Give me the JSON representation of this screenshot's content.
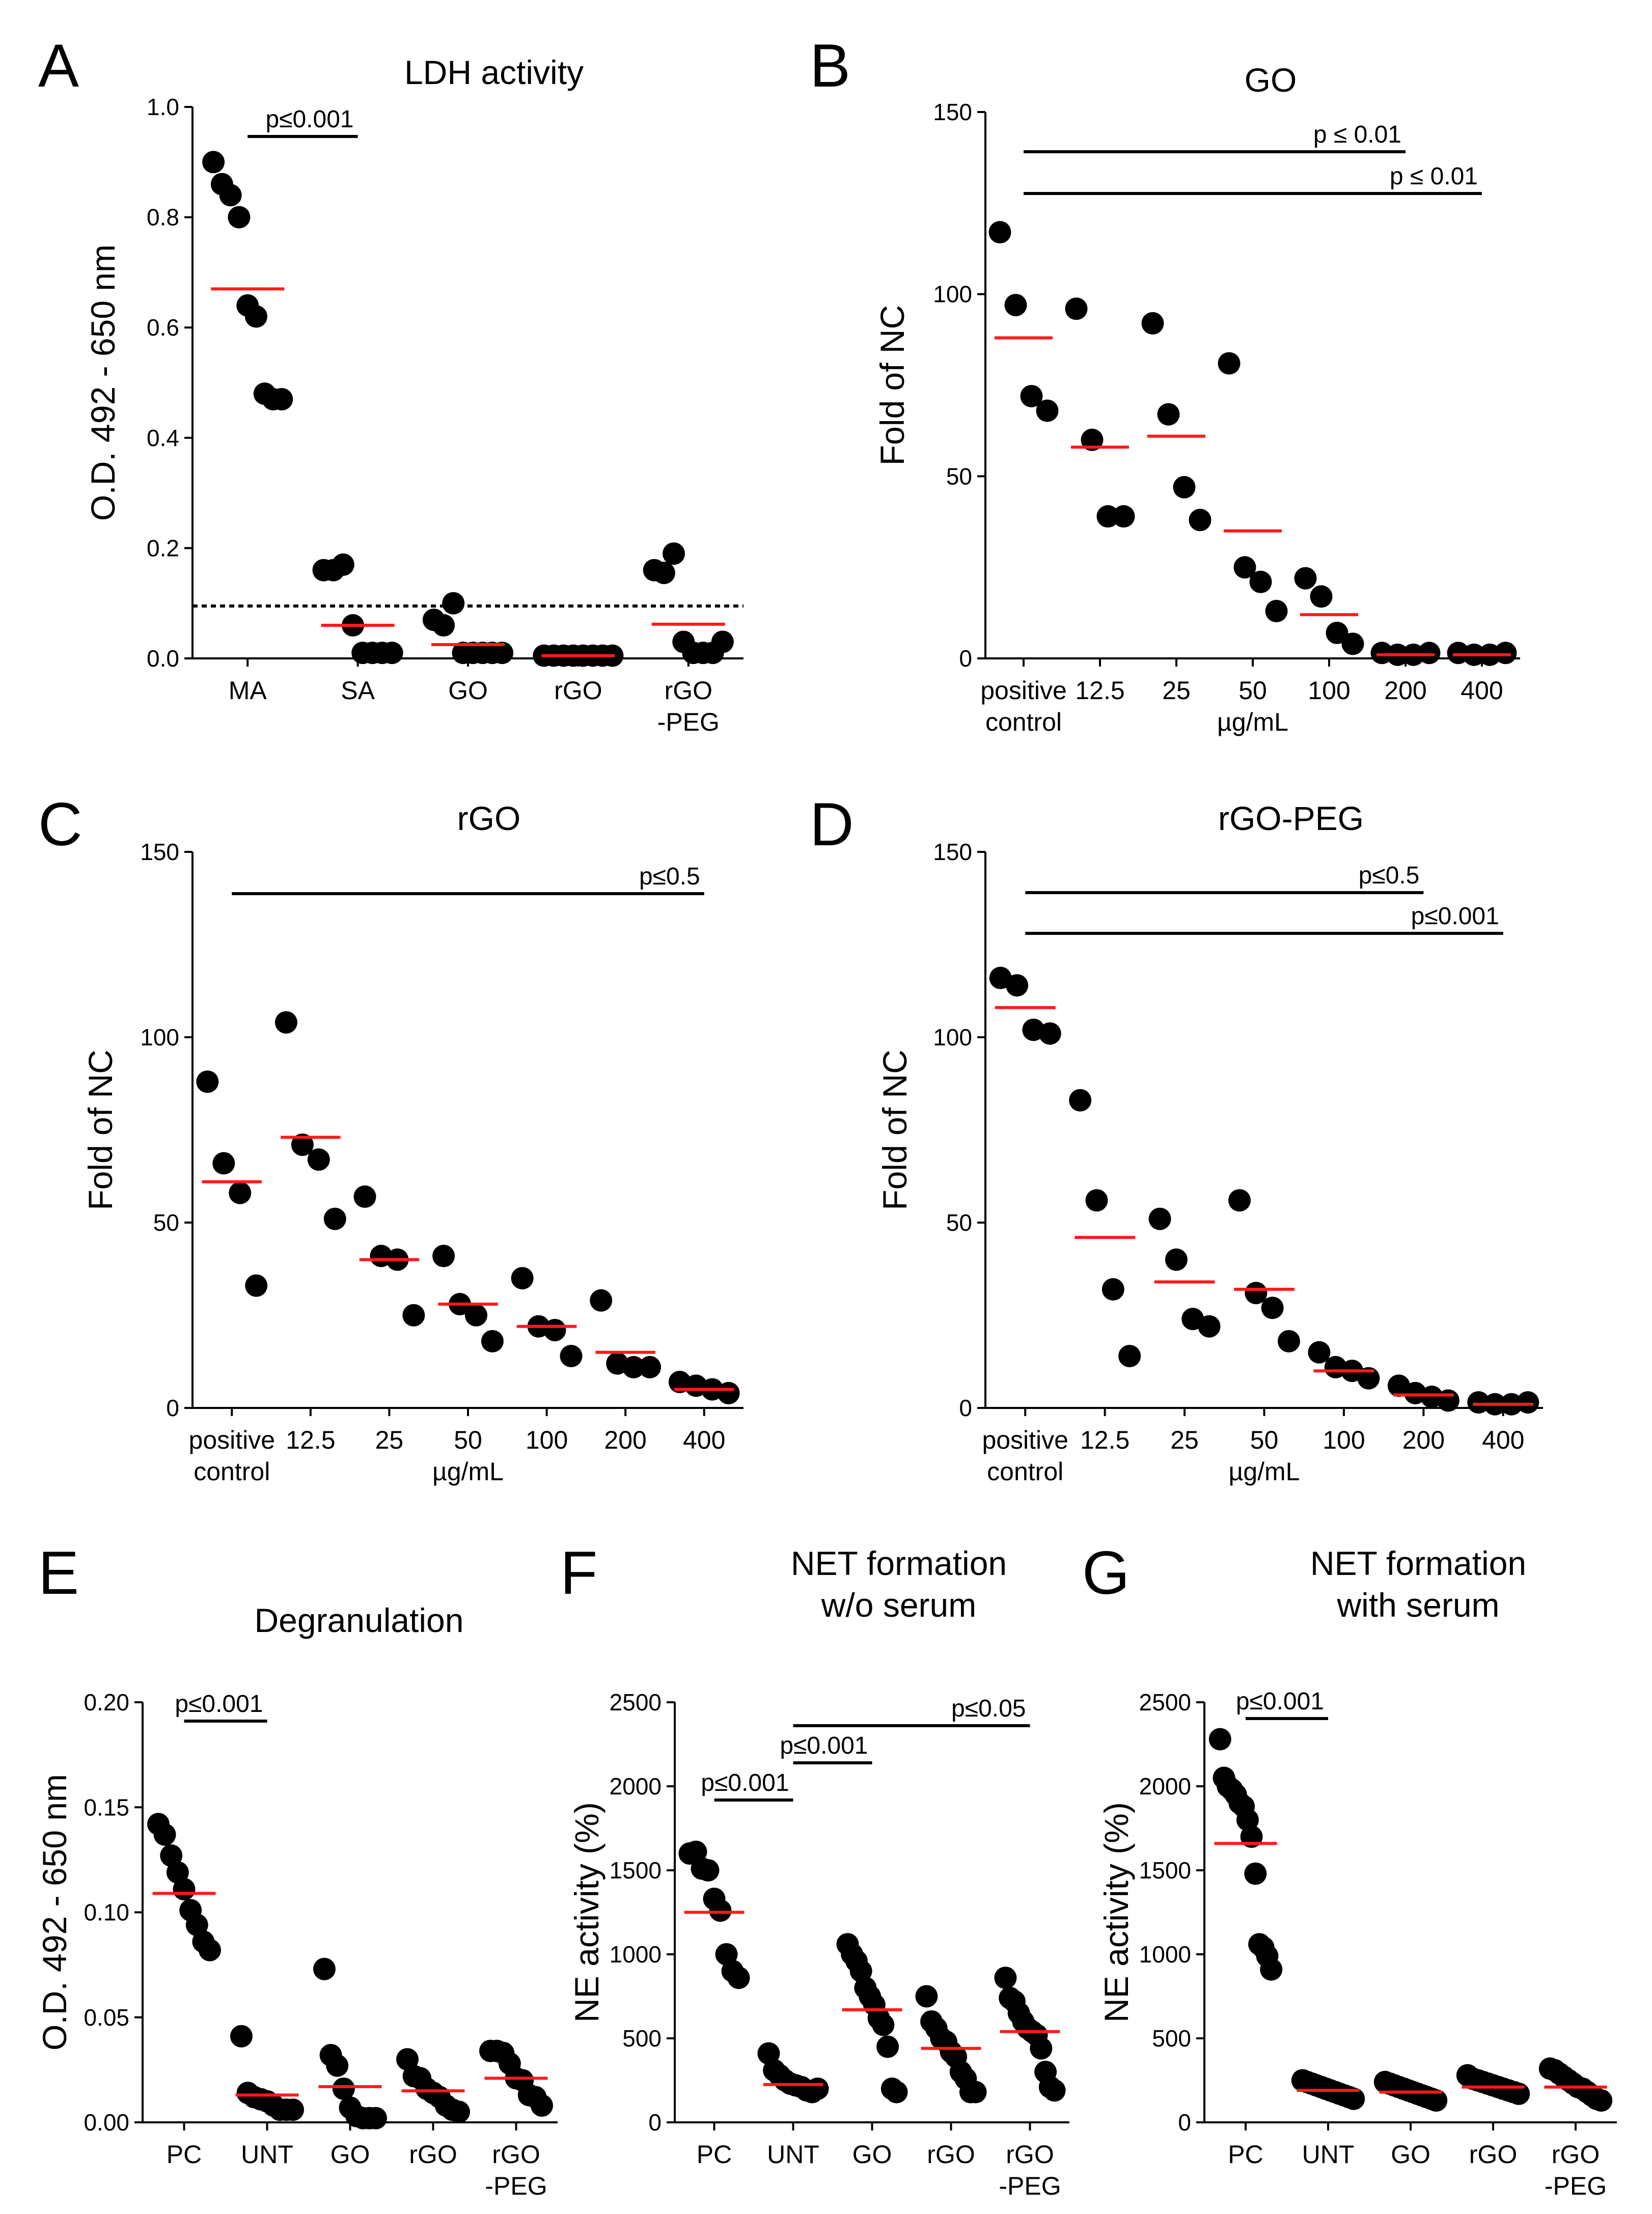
{
  "chart_data": [
    {
      "id": "A",
      "type": "scatter",
      "letter": "A",
      "title": "LDH activity",
      "ylabel": "O.D. 492 - 650 nm",
      "xlabel": "",
      "ylim": [
        0,
        1.0
      ],
      "yticks": [
        0,
        0.2,
        0.4,
        0.6,
        0.8,
        1.0
      ],
      "ytick_labels": [
        "0.0",
        "0.2",
        "0.4",
        "0.6",
        "0.8",
        "1.0"
      ],
      "categories": [
        "MA",
        "SA",
        "GO",
        "rGO",
        "rGO\n-PEG"
      ],
      "points": [
        [
          0.9,
          0.86,
          0.84,
          0.8,
          0.64,
          0.62,
          0.48,
          0.47,
          0.47
        ],
        [
          0.16,
          0.16,
          0.17,
          0.06,
          0.01,
          0.01,
          0.01,
          0.01
        ],
        [
          0.07,
          0.06,
          0.1,
          0.01,
          0.01,
          0.01,
          0.01,
          0.01
        ],
        [
          0.005,
          0.005,
          0.005,
          0.005,
          0.005,
          0.005,
          0.005,
          0.005
        ],
        [
          0.16,
          0.155,
          0.19,
          0.03,
          0.01,
          0.01,
          0.01,
          0.03
        ]
      ],
      "medians": [
        0.67,
        0.06,
        0.025,
        0.005,
        0.062
      ],
      "threshold": 0.095,
      "sig": [
        {
          "from": 0,
          "to": 1,
          "label": "p≤0.001"
        }
      ]
    },
    {
      "id": "B",
      "type": "scatter",
      "letter": "B",
      "title": "GO",
      "ylabel": "Fold of NC",
      "xlabel": "µg/mL",
      "ylim": [
        0,
        150
      ],
      "yticks": [
        0,
        50,
        100,
        150
      ],
      "ytick_labels": [
        "0",
        "50",
        "100",
        "150"
      ],
      "categories": [
        "positive\ncontrol",
        "12.5",
        "25",
        "50",
        "100",
        "200",
        "400"
      ],
      "points": [
        [
          117,
          97,
          72,
          68
        ],
        [
          96,
          60,
          39,
          39
        ],
        [
          92,
          67,
          47,
          38
        ],
        [
          81,
          25,
          21,
          13
        ],
        [
          22,
          17,
          7,
          4
        ],
        [
          1.5,
          1,
          1,
          1.5
        ],
        [
          1.5,
          1,
          1,
          1.5
        ]
      ],
      "medians": [
        88,
        58,
        61,
        35,
        12,
        1,
        1
      ],
      "sig": [
        {
          "from": 0,
          "to": 6,
          "label": "p ≤ 0.01"
        },
        {
          "from": 0,
          "to": 5,
          "label": "p ≤ 0.01"
        }
      ]
    },
    {
      "id": "C",
      "type": "scatter",
      "letter": "C",
      "title": "rGO",
      "ylabel": "Fold of NC",
      "xlabel": "µg/mL",
      "ylim": [
        0,
        150
      ],
      "yticks": [
        0,
        50,
        100,
        150
      ],
      "ytick_labels": [
        "0",
        "50",
        "100",
        "150"
      ],
      "categories": [
        "positive\ncontrol",
        "12.5",
        "25",
        "50",
        "100",
        "200",
        "400"
      ],
      "points": [
        [
          88,
          66,
          58,
          33
        ],
        [
          104,
          71,
          67,
          51
        ],
        [
          57,
          41,
          40,
          25
        ],
        [
          41,
          28,
          25,
          18
        ],
        [
          35,
          22,
          21,
          14
        ],
        [
          29,
          12,
          11,
          11
        ],
        [
          7,
          6,
          5,
          4
        ]
      ],
      "medians": [
        61,
        73,
        40,
        28,
        22,
        15,
        5
      ],
      "sig": [
        {
          "from": 0,
          "to": 6,
          "label": "p≤0.5"
        }
      ]
    },
    {
      "id": "D",
      "type": "scatter",
      "letter": "D",
      "title": "rGO-PEG",
      "ylabel": "Fold of NC",
      "xlabel": "µg/mL",
      "ylim": [
        0,
        150
      ],
      "yticks": [
        0,
        50,
        100,
        150
      ],
      "ytick_labels": [
        "0",
        "50",
        "100",
        "150"
      ],
      "categories": [
        "positive\ncontrol",
        "12.5",
        "25",
        "50",
        "100",
        "200",
        "400"
      ],
      "points": [
        [
          116,
          114,
          102,
          101
        ],
        [
          83,
          56,
          32,
          14
        ],
        [
          51,
          40,
          24,
          22
        ],
        [
          56,
          31,
          27,
          18
        ],
        [
          15,
          11,
          10,
          8
        ],
        [
          6,
          4,
          3,
          2
        ],
        [
          1.5,
          1,
          1,
          1.5
        ]
      ],
      "medians": [
        108,
        46,
        34,
        32,
        10,
        3.5,
        1
      ],
      "sig": [
        {
          "from": 0,
          "to": 6,
          "label": "p≤0.001"
        },
        {
          "from": 0,
          "to": 5,
          "label": "p≤0.5"
        }
      ]
    },
    {
      "id": "E",
      "type": "scatter",
      "letter": "E",
      "title": "Degranulation",
      "ylabel": "O.D. 492 - 650  nm",
      "xlabel": "",
      "ylim": [
        0,
        0.2
      ],
      "yticks": [
        0,
        0.05,
        0.1,
        0.15,
        0.2
      ],
      "ytick_labels": [
        "0.00",
        "0.05",
        "0.10",
        "0.15",
        "0.20"
      ],
      "categories": [
        "PC",
        "UNT",
        "GO",
        "rGO",
        "rGO\n-PEG"
      ],
      "points": [
        [
          0.142,
          0.137,
          0.127,
          0.119,
          0.111,
          0.101,
          0.094,
          0.086,
          0.082
        ],
        [
          0.041,
          0.014,
          0.012,
          0.011,
          0.01,
          0.008,
          0.006,
          0.006,
          0.006
        ],
        [
          0.073,
          0.032,
          0.027,
          0.016,
          0.007,
          0.003,
          0.002,
          0.002,
          0.002
        ],
        [
          0.03,
          0.022,
          0.021,
          0.016,
          0.014,
          0.012,
          0.008,
          0.006,
          0.005
        ],
        [
          0.034,
          0.034,
          0.033,
          0.028,
          0.021,
          0.02,
          0.013,
          0.012,
          0.008
        ]
      ],
      "medians": [
        0.109,
        0.013,
        0.017,
        0.015,
        0.021
      ],
      "sig": [
        {
          "from": 0,
          "to": 1,
          "label": "p≤0.001"
        }
      ]
    },
    {
      "id": "F",
      "type": "scatter",
      "letter": "F",
      "title": "NET formation\nw/o serum",
      "ylabel": "NE activity (%)",
      "xlabel": "",
      "ylim": [
        0,
        2500
      ],
      "yticks": [
        0,
        500,
        1000,
        1500,
        2000,
        2500
      ],
      "ytick_labels": [
        "0",
        "500",
        "1000",
        "1500",
        "2000",
        "2500"
      ],
      "categories": [
        "PC",
        "UNT",
        "GO",
        "rGO",
        "rGO\n-PEG"
      ],
      "points": [
        [
          1600,
          1610,
          1510,
          1500,
          1330,
          1260,
          1000,
          900,
          860
        ],
        [
          410,
          310,
          280,
          250,
          230,
          220,
          210,
          190,
          180,
          200
        ],
        [
          1060,
          1000,
          960,
          900,
          800,
          750,
          700,
          620,
          580,
          450,
          200,
          180
        ],
        [
          750,
          600,
          560,
          500,
          480,
          420,
          390,
          300,
          260,
          180,
          180
        ],
        [
          860,
          740,
          720,
          650,
          600,
          560,
          540,
          520,
          440,
          300,
          210,
          190
        ]
      ],
      "medians": [
        1250,
        225,
        670,
        440,
        540
      ],
      "sig": [
        {
          "from": 0,
          "to": 1,
          "label": "p≤0.001"
        },
        {
          "from": 1,
          "to": 2,
          "label": "p≤0.001"
        },
        {
          "from": 1,
          "to": 4,
          "label": "p≤0.05"
        }
      ]
    },
    {
      "id": "G",
      "type": "scatter",
      "letter": "G",
      "title": "NET formation\nwith serum",
      "ylabel": "NE activity (%)",
      "xlabel": "",
      "ylim": [
        0,
        2500
      ],
      "yticks": [
        0,
        500,
        1000,
        1500,
        2000,
        2500
      ],
      "ytick_labels": [
        "0",
        "500",
        "1000",
        "1500",
        "2000",
        "2500"
      ],
      "categories": [
        "PC",
        "UNT",
        "GO",
        "rGO",
        "rGO\n-PEG"
      ],
      "points": [
        [
          2280,
          2050,
          2000,
          1980,
          1950,
          1900,
          1880,
          1800,
          1700,
          1480,
          1060,
          1040,
          990,
          910
        ],
        [
          250,
          240,
          230,
          220,
          210,
          200,
          190,
          180,
          170,
          160,
          150,
          140
        ],
        [
          240,
          230,
          220,
          210,
          200,
          190,
          180,
          170,
          160,
          150,
          140,
          130
        ],
        [
          280,
          260,
          250,
          240,
          230,
          220,
          210,
          200,
          190,
          180,
          170
        ],
        [
          320,
          310,
          290,
          270,
          250,
          230,
          210,
          200,
          180,
          160,
          140,
          130
        ]
      ],
      "medians": [
        1660,
        190,
        180,
        210,
        210
      ],
      "sig": [
        {
          "from": 0,
          "to": 1,
          "label": "p≤0.001"
        }
      ]
    }
  ]
}
